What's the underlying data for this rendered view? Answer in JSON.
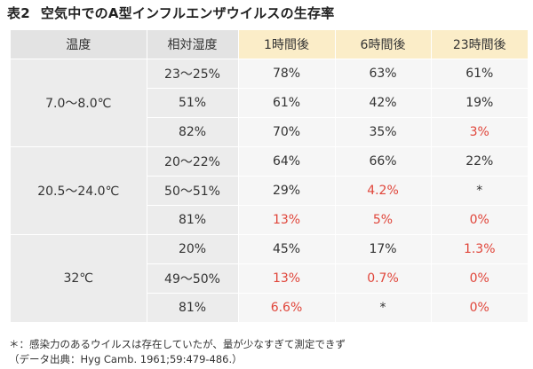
{
  "title": {
    "number": "表2",
    "text": "空気中でのA型インフルエンザウイルスの生存率"
  },
  "table": {
    "headers": [
      "温度",
      "相対湿度",
      "1時間後",
      "6時間後",
      "23時間後"
    ],
    "groups": [
      {
        "temperature": "7.0～8.0℃",
        "rows": [
          {
            "humidity": "23～25%",
            "cells": [
              {
                "v": "78%",
                "red": false
              },
              {
                "v": "63%",
                "red": false
              },
              {
                "v": "61%",
                "red": false
              }
            ]
          },
          {
            "humidity": "51%",
            "cells": [
              {
                "v": "61%",
                "red": false
              },
              {
                "v": "42%",
                "red": false
              },
              {
                "v": "19%",
                "red": false
              }
            ]
          },
          {
            "humidity": "82%",
            "cells": [
              {
                "v": "70%",
                "red": false
              },
              {
                "v": "35%",
                "red": false
              },
              {
                "v": "3%",
                "red": true
              }
            ]
          }
        ]
      },
      {
        "temperature": "20.5～24.0℃",
        "rows": [
          {
            "humidity": "20～22%",
            "cells": [
              {
                "v": "64%",
                "red": false
              },
              {
                "v": "66%",
                "red": false
              },
              {
                "v": "22%",
                "red": false
              }
            ]
          },
          {
            "humidity": "50～51%",
            "cells": [
              {
                "v": "29%",
                "red": false
              },
              {
                "v": "4.2%",
                "red": true
              },
              {
                "v": "*",
                "red": false
              }
            ]
          },
          {
            "humidity": "81%",
            "cells": [
              {
                "v": "13%",
                "red": true
              },
              {
                "v": "5%",
                "red": true
              },
              {
                "v": "0%",
                "red": true
              }
            ]
          }
        ]
      },
      {
        "temperature": "32℃",
        "rows": [
          {
            "humidity": "20%",
            "cells": [
              {
                "v": "45%",
                "red": false
              },
              {
                "v": "17%",
                "red": false
              },
              {
                "v": "1.3%",
                "red": true
              }
            ]
          },
          {
            "humidity": "49～50%",
            "cells": [
              {
                "v": "13%",
                "red": true
              },
              {
                "v": "0.7%",
                "red": true
              },
              {
                "v": "0%",
                "red": true
              }
            ]
          },
          {
            "humidity": "81%",
            "cells": [
              {
                "v": "6.6%",
                "red": true
              },
              {
                "v": "*",
                "red": false
              },
              {
                "v": "0%",
                "red": true
              }
            ]
          }
        ]
      }
    ]
  },
  "notes": {
    "asterisk": "＊：感染力のあるウイルスは存在していたが、量が少なすぎて測定できず",
    "source": "（データ出典：Hyg Camb. 1961;59:479-486.）"
  },
  "colors": {
    "highlight": "#e0453a",
    "header_gray": "#e3e3e3",
    "header_yellow": "#fbedc8"
  }
}
